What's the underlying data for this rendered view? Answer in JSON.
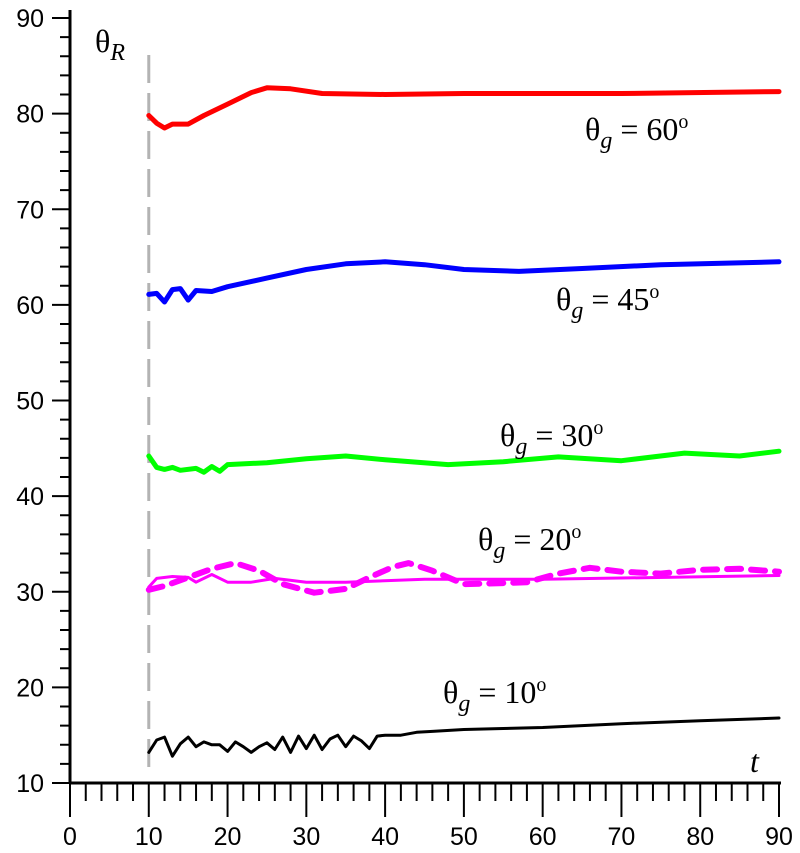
{
  "chart_data": {
    "type": "line",
    "title": "",
    "xlabel": "t",
    "ylabel": {
      "base": "θ",
      "sub": "R"
    },
    "xlim": [
      0,
      90
    ],
    "ylim": [
      10,
      90
    ],
    "xticks": [
      0,
      10,
      20,
      30,
      40,
      50,
      60,
      70,
      80,
      90
    ],
    "yticks": [
      10,
      20,
      30,
      40,
      50,
      60,
      70,
      80,
      90
    ],
    "grid": false,
    "reference_line": {
      "x": 10,
      "color": "#b3b3b3",
      "style": "dashed"
    },
    "series": [
      {
        "label": {
          "base": "θ",
          "sub": "g",
          "text": " = 60",
          "sup": "o"
        },
        "color": "#ff0000",
        "style": "solid",
        "x": [
          10,
          11,
          12,
          13,
          15,
          17,
          20,
          23,
          25,
          28,
          32,
          40,
          50,
          70,
          90
        ],
        "y": [
          79.8,
          79.0,
          78.5,
          78.9,
          78.9,
          79.8,
          81.0,
          82.2,
          82.7,
          82.6,
          82.1,
          82.0,
          82.1,
          82.1,
          82.3
        ]
      },
      {
        "label": {
          "base": "θ",
          "sub": "g",
          "text": " = 45",
          "sup": "o"
        },
        "color": "#0000ff",
        "style": "solid",
        "x": [
          10,
          11,
          12,
          13,
          14,
          15,
          16,
          18,
          20,
          25,
          30,
          35,
          40,
          45,
          50,
          57,
          65,
          75,
          90
        ],
        "y": [
          61.1,
          61.2,
          60.3,
          61.6,
          61.7,
          60.5,
          61.5,
          61.4,
          61.9,
          62.8,
          63.7,
          64.3,
          64.5,
          64.2,
          63.7,
          63.5,
          63.8,
          64.2,
          64.5
        ]
      },
      {
        "label": {
          "base": "θ",
          "sub": "g",
          "text": " = 30",
          "sup": "o"
        },
        "color": "#00ff00",
        "style": "solid",
        "x": [
          10,
          11,
          12,
          13,
          14,
          16,
          17,
          18,
          19,
          20,
          25,
          30,
          35,
          40,
          48,
          55,
          62,
          70,
          78,
          85,
          90
        ],
        "y": [
          44.2,
          43.0,
          42.8,
          43.0,
          42.7,
          42.9,
          42.5,
          43.1,
          42.6,
          43.3,
          43.5,
          43.9,
          44.2,
          43.8,
          43.3,
          43.6,
          44.1,
          43.7,
          44.5,
          44.2,
          44.7
        ]
      },
      {
        "label": {
          "base": "θ",
          "sub": "g",
          "text": " = 20",
          "sup": "o"
        },
        "color": "#ff00ff",
        "style": "solid",
        "x": [
          10,
          11,
          13,
          15,
          16,
          18,
          20,
          23,
          26,
          30,
          35,
          45,
          60,
          90
        ],
        "y": [
          30.5,
          31.4,
          31.6,
          31.5,
          31.0,
          31.8,
          31.0,
          31.0,
          31.4,
          31.0,
          31.0,
          31.3,
          31.3,
          31.7
        ]
      },
      {
        "color": "#ff00ff",
        "style": "dashed",
        "x": [
          10,
          12,
          15,
          18,
          21,
          24,
          27,
          31,
          35,
          38,
          41,
          43,
          46,
          50,
          55,
          58,
          62,
          66,
          70,
          75,
          80,
          85,
          90
        ],
        "y": [
          30.2,
          30.6,
          31.5,
          32.4,
          33.0,
          32.2,
          30.8,
          29.9,
          30.3,
          31.5,
          32.6,
          33.0,
          32.2,
          30.8,
          30.9,
          31.0,
          31.9,
          32.5,
          32.1,
          31.9,
          32.3,
          32.4,
          32.1
        ]
      },
      {
        "label": {
          "base": "θ",
          "sub": "g",
          "text": " = 10",
          "sup": "o"
        },
        "color": "#000000",
        "style": "solid",
        "x": [
          10,
          11,
          12,
          13,
          14,
          15,
          16,
          17,
          18,
          19,
          20,
          21,
          22,
          23,
          24,
          25,
          26,
          27,
          28,
          29,
          30,
          31,
          32,
          33,
          34,
          35,
          36,
          37,
          38,
          39,
          40,
          42,
          44,
          46,
          50,
          55,
          60,
          70,
          80,
          90
        ],
        "y": [
          13.2,
          14.5,
          14.8,
          12.8,
          14.1,
          14.8,
          13.8,
          14.3,
          14.0,
          14.0,
          13.3,
          14.3,
          13.8,
          13.2,
          13.8,
          14.2,
          13.5,
          14.8,
          13.2,
          14.9,
          13.6,
          15.0,
          13.5,
          14.6,
          15.0,
          13.8,
          14.9,
          14.4,
          13.6,
          14.9,
          15.0,
          15.0,
          15.3,
          15.4,
          15.6,
          15.7,
          15.8,
          16.2,
          16.5,
          16.8
        ]
      }
    ]
  }
}
